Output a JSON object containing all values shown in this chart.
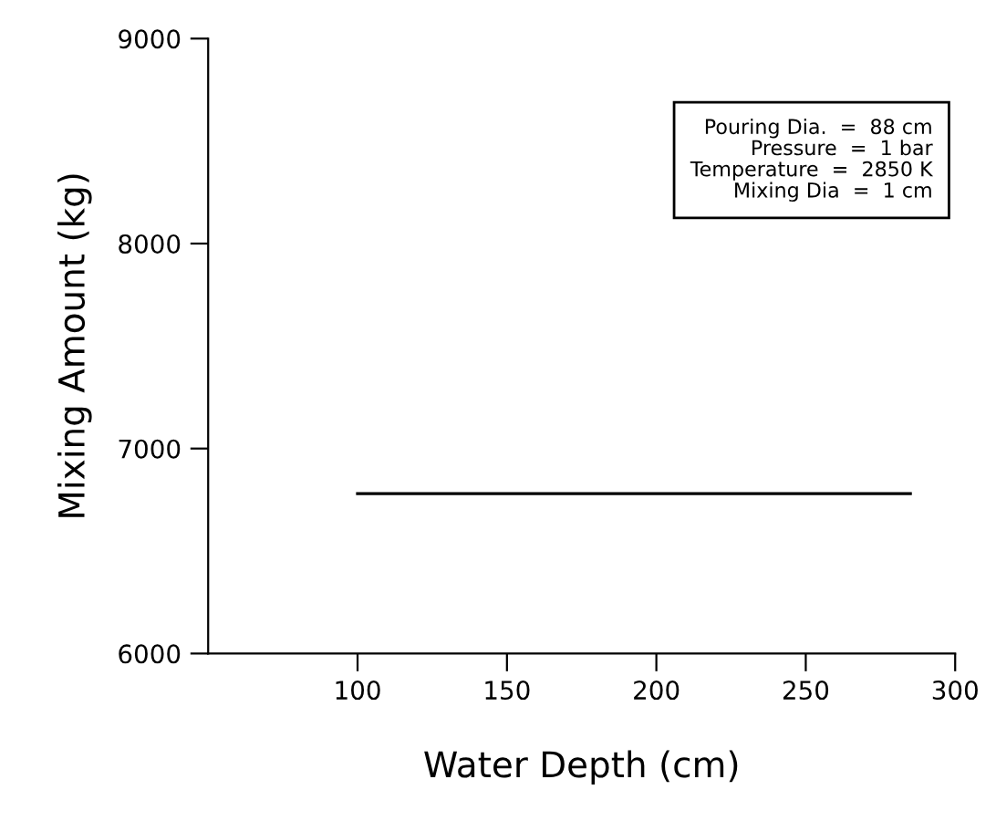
{
  "chart_data": {
    "type": "line",
    "xlabel": "Water Depth (cm)",
    "ylabel": "Mixing Amount (kg)",
    "x": [
      100,
      285
    ],
    "series": [
      {
        "color": "#000000",
        "values": [
          6780,
          6780
        ]
      }
    ],
    "xlim": [
      50,
      300
    ],
    "xticks": [
      100,
      150,
      200,
      250,
      300
    ],
    "ylim": [
      6000,
      9000
    ],
    "yticks": [
      6000,
      7000,
      8000,
      9000
    ],
    "annotations": [
      "Pouring Dia.  =  88 cm",
      "Pressure  =  1 bar",
      "Temperature  =  2850 K",
      "Mixing Dia  =  1 cm"
    ],
    "grid": false,
    "legend": false,
    "marker": "none",
    "line_style": "solid"
  }
}
